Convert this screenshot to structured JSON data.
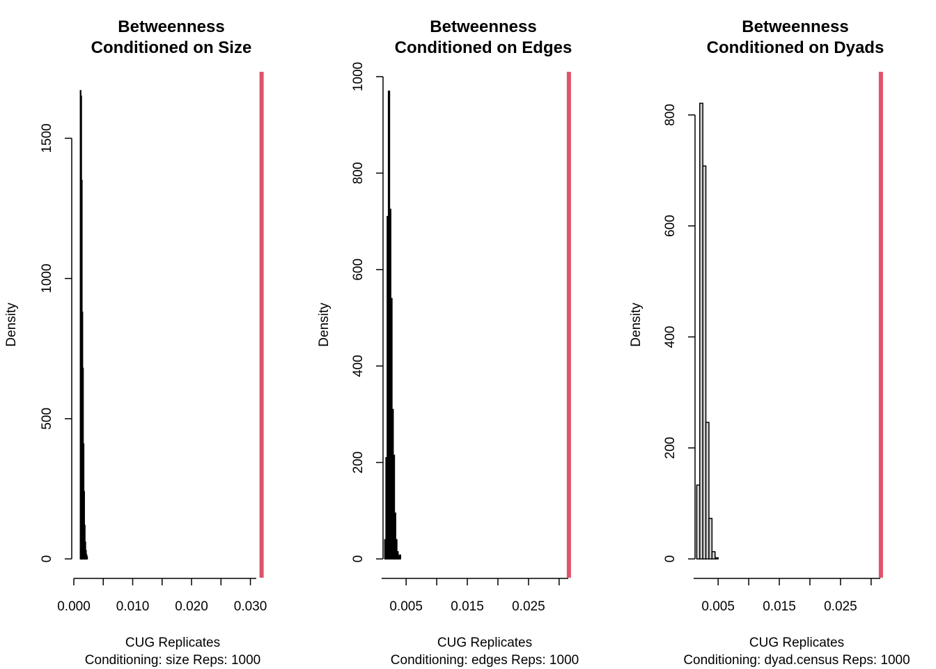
{
  "chart_data": [
    {
      "type": "bar",
      "title": "Betweenness",
      "subtitle": "Conditioned on Size",
      "xlabel": "CUG Replicates",
      "xlabel2": "Conditioning: size Reps: 1000",
      "ylabel": "Density",
      "xlim": [
        0.0,
        0.031
      ],
      "ylim": [
        0,
        1670
      ],
      "x_ticks": [
        "0.000",
        "0.010",
        "0.020",
        "0.030"
      ],
      "y_ticks": [
        "0",
        "500",
        "1000",
        "1500"
      ],
      "bin_width": 0.0001,
      "bins": [
        {
          "x0": 0.0011,
          "x1": 0.0012,
          "density": 1670
        },
        {
          "x0": 0.0012,
          "x1": 0.0013,
          "density": 1650
        },
        {
          "x0": 0.0013,
          "x1": 0.0014,
          "density": 1350
        },
        {
          "x0": 0.0014,
          "x1": 0.0015,
          "density": 880
        },
        {
          "x0": 0.0015,
          "x1": 0.0016,
          "density": 680
        },
        {
          "x0": 0.0016,
          "x1": 0.0017,
          "density": 410
        },
        {
          "x0": 0.0017,
          "x1": 0.0018,
          "density": 240
        },
        {
          "x0": 0.0018,
          "x1": 0.0019,
          "density": 120
        },
        {
          "x0": 0.0019,
          "x1": 0.002,
          "density": 60
        },
        {
          "x0": 0.002,
          "x1": 0.0021,
          "density": 30
        },
        {
          "x0": 0.0021,
          "x1": 0.0022,
          "density": 15
        },
        {
          "x0": 0.0022,
          "x1": 0.0023,
          "density": 8
        }
      ],
      "observed_value": 0.0319,
      "bar_fill": "#000000",
      "observed_line_color": "#df536b"
    },
    {
      "type": "bar",
      "title": "Betweenness",
      "subtitle": "Conditioned on Edges",
      "xlabel": "CUG Replicates",
      "xlabel2": "Conditioning: edges Reps: 1000",
      "ylabel": "Density",
      "xlim": [
        0.001,
        0.0315
      ],
      "ylim": [
        0,
        1000
      ],
      "x_ticks": [
        "0.005",
        "0.015",
        "0.025"
      ],
      "y_ticks": [
        "0",
        "200",
        "400",
        "600",
        "800",
        "1000"
      ],
      "bin_width": 0.0002,
      "bins": [
        {
          "x0": 0.0015,
          "x1": 0.0017,
          "density": 40
        },
        {
          "x0": 0.0017,
          "x1": 0.0019,
          "density": 210
        },
        {
          "x0": 0.0019,
          "x1": 0.0021,
          "density": 710
        },
        {
          "x0": 0.0021,
          "x1": 0.0023,
          "density": 970
        },
        {
          "x0": 0.0023,
          "x1": 0.0025,
          "density": 725
        },
        {
          "x0": 0.0025,
          "x1": 0.0027,
          "density": 540
        },
        {
          "x0": 0.0027,
          "x1": 0.0029,
          "density": 310
        },
        {
          "x0": 0.0029,
          "x1": 0.0031,
          "density": 215
        },
        {
          "x0": 0.0031,
          "x1": 0.0033,
          "density": 95
        },
        {
          "x0": 0.0033,
          "x1": 0.0035,
          "density": 40
        },
        {
          "x0": 0.0035,
          "x1": 0.0037,
          "density": 15
        },
        {
          "x0": 0.0037,
          "x1": 0.0039,
          "density": 5
        },
        {
          "x0": 0.0039,
          "x1": 0.0041,
          "density": 8
        }
      ],
      "observed_value": 0.0316,
      "bar_fill": "#000000",
      "observed_line_color": "#df536b"
    },
    {
      "type": "bar",
      "title": "Betweenness",
      "subtitle": "Conditioned on Dyads",
      "xlabel": "CUG Replicates",
      "xlabel2": "Conditioning: dyad.census Reps: 1000",
      "ylabel": "Density",
      "xlim": [
        0.001,
        0.0315
      ],
      "ylim": [
        0,
        820
      ],
      "x_ticks": [
        "0.005",
        "0.015",
        "0.025"
      ],
      "y_ticks": [
        "0",
        "200",
        "400",
        "600",
        "800"
      ],
      "bin_width": 0.0005,
      "bins": [
        {
          "x0": 0.0015,
          "x1": 0.002,
          "density": 133
        },
        {
          "x0": 0.002,
          "x1": 0.0025,
          "density": 821
        },
        {
          "x0": 0.0025,
          "x1": 0.003,
          "density": 708
        },
        {
          "x0": 0.003,
          "x1": 0.0035,
          "density": 246
        },
        {
          "x0": 0.0035,
          "x1": 0.004,
          "density": 73
        },
        {
          "x0": 0.004,
          "x1": 0.0045,
          "density": 13
        },
        {
          "x0": 0.0045,
          "x1": 0.005,
          "density": 2
        }
      ],
      "observed_value": 0.0316,
      "bar_fill": "#d3d3d3",
      "observed_line_color": "#df536b"
    }
  ]
}
